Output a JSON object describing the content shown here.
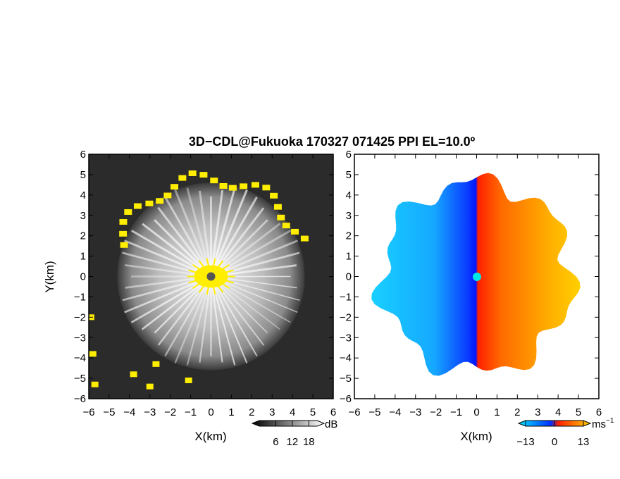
{
  "chart_data": {
    "title": "3D−CDL@Fukuoka 170327 071425 PPI EL=10.0º",
    "panels": [
      {
        "id": "reflectivity",
        "type": "heatmap",
        "xlabel": "X(km)",
        "ylabel": "Y(km)",
        "xlim": [
          -6,
          6
        ],
        "ylim": [
          -6,
          6
        ],
        "x_ticks": [
          "−6",
          "−5",
          "−4",
          "−3",
          "−2",
          "−1",
          "0",
          "1",
          "2",
          "3",
          "4",
          "5",
          "6"
        ],
        "y_ticks": [
          "6",
          "5",
          "4",
          "3",
          "2",
          "1",
          "0",
          "−1",
          "−2",
          "−3",
          "−4",
          "−5",
          "−6"
        ],
        "colorbar": {
          "unit": "dB",
          "ticks": [
            "6",
            "12",
            "18"
          ],
          "range": [
            0,
            21
          ]
        },
        "colors": {
          "background": "#2b2b2b",
          "echo": "#d8d8d8",
          "highlight": "#ffee00",
          "center": "#555555"
        },
        "data_radius_km": 4.6,
        "highlight_ring_km": 4.8
      },
      {
        "id": "doppler-velocity",
        "type": "heatmap",
        "xlabel": "X(km)",
        "xlim": [
          -6,
          6
        ],
        "ylim": [
          -6,
          6
        ],
        "x_ticks": [
          "−6",
          "−5",
          "−4",
          "−3",
          "−2",
          "−1",
          "0",
          "1",
          "2",
          "3",
          "4",
          "5",
          "6"
        ],
        "y_ticks": [
          "6",
          "5",
          "4",
          "3",
          "2",
          "1",
          "0",
          "−1",
          "−2",
          "−3",
          "−4",
          "−5",
          "−6"
        ],
        "colorbar": {
          "unit": "ms",
          "unit_sup": "−1",
          "ticks": [
            "−13",
            "0",
            "13"
          ],
          "range": [
            -13,
            13
          ]
        },
        "colors": {
          "negative_far": "#12c0ff",
          "negative_near": "#0a2bff",
          "positive_near": "#ff1a00",
          "positive_far": "#ffc000",
          "center": "#00e5e5"
        },
        "data_radius_km": 5.3
      }
    ]
  }
}
